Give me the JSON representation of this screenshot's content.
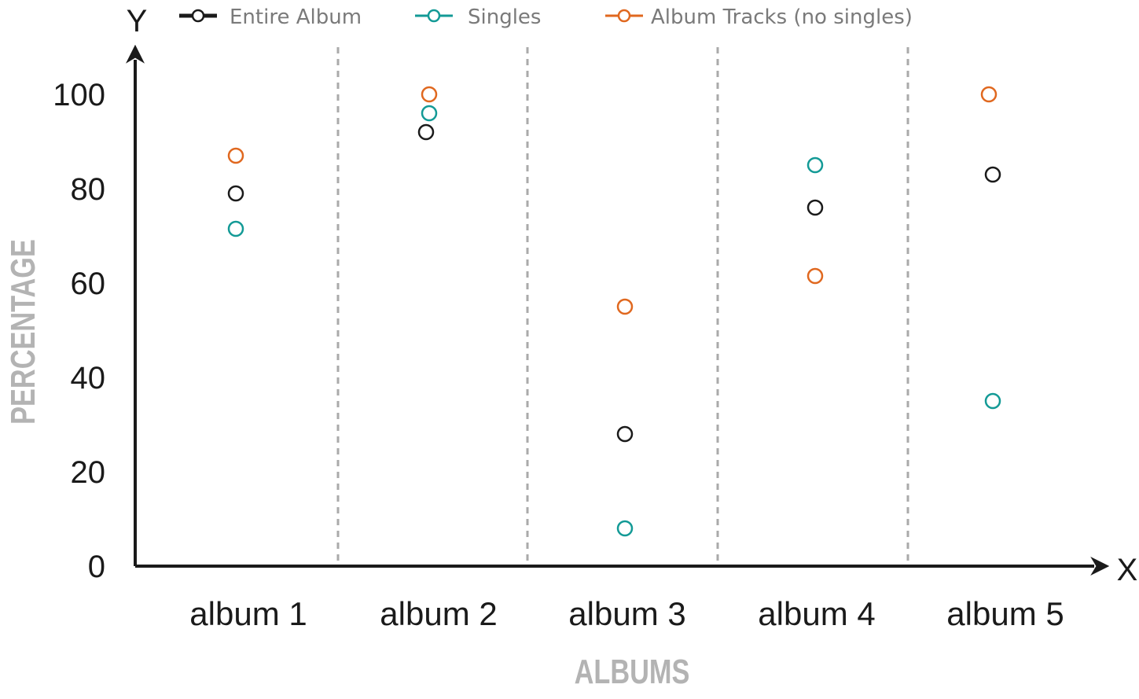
{
  "chart_data": {
    "type": "scatter",
    "categories": [
      "album 1",
      "album 2",
      "album 3",
      "album 4",
      "album 5"
    ],
    "series": [
      {
        "name": "Entire Album",
        "values": [
          79,
          92,
          28,
          76,
          83
        ],
        "color": "#1a1a1a"
      },
      {
        "name": "Singles",
        "values": [
          71.5,
          96,
          8,
          85,
          35
        ],
        "color": "#139a96"
      },
      {
        "name": "Album Tracks (no singles)",
        "values": [
          87,
          100,
          55,
          61.5,
          100
        ],
        "color": "#e0681f"
      }
    ],
    "y_ticks": [
      "0",
      "20",
      "40",
      "60",
      "80",
      "100"
    ],
    "ylim": [
      0,
      100
    ],
    "xlabel": "ALBUMS",
    "ylabel": "PERCENTAGE",
    "x_axis_letter": "X",
    "y_axis_letter": "Y",
    "legend_position": "top",
    "grid": "dashed vertical separators between categories"
  }
}
